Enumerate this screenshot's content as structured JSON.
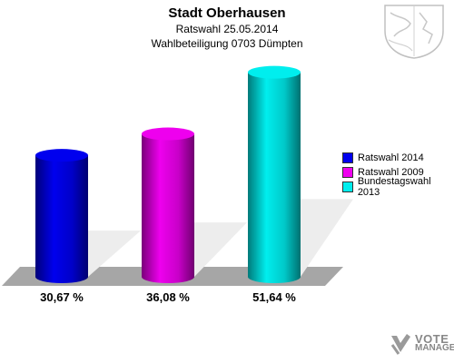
{
  "header": {
    "title": "Stadt Oberhausen",
    "subtitle1": "Ratswahl 25.05.2014",
    "subtitle2": "Wahlbeteiligung 0703 Dümpten"
  },
  "chart_data": {
    "type": "bar",
    "title": "Stadt Oberhausen",
    "categories": [
      "Ratswahl 2014",
      "Ratswahl 2009",
      "Bundestagswahl 2013"
    ],
    "values": [
      30.67,
      36.08,
      51.64
    ],
    "value_labels": [
      "30,67 %",
      "36,08 %",
      "51,64 %"
    ],
    "colors": [
      "#0000ee",
      "#ee00ee",
      "#00eeee"
    ],
    "ylim": [
      0,
      55
    ],
    "grid": false,
    "legend_position": "right"
  },
  "legend": {
    "items": [
      {
        "label": "Ratswahl 2014",
        "color": "#0000ee"
      },
      {
        "label": "Ratswahl 2009",
        "color": "#ee00ee"
      },
      {
        "label": "Bundestagswahl 2013",
        "color": "#00eeee"
      }
    ]
  },
  "branding": {
    "line1": "VOTE",
    "line2": "MANAGER",
    "crest_icon": "coat-of-arms-icon",
    "logo_icon": "vote-manager-logo-icon"
  }
}
